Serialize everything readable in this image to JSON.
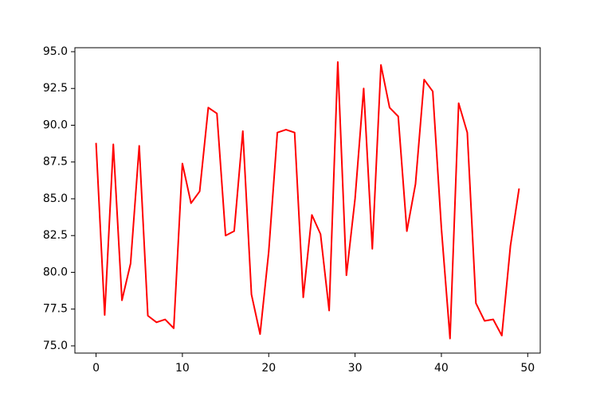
{
  "chart_data": {
    "type": "line",
    "x": [
      0,
      1,
      2,
      3,
      4,
      5,
      6,
      7,
      8,
      9,
      10,
      11,
      12,
      13,
      14,
      15,
      16,
      17,
      18,
      19,
      20,
      21,
      22,
      23,
      24,
      25,
      26,
      27,
      28,
      29,
      30,
      31,
      32,
      33,
      34,
      35,
      36,
      37,
      38,
      39,
      40,
      41,
      42,
      43,
      44,
      45,
      46,
      47,
      48,
      49
    ],
    "series": [
      {
        "color": "#ff0000",
        "values": [
          88.8,
          77.1,
          88.7,
          78.1,
          80.6,
          88.6,
          77.05,
          76.6,
          76.8,
          76.2,
          87.4,
          84.7,
          85.5,
          91.2,
          90.8,
          82.5,
          82.8,
          89.6,
          78.5,
          75.8,
          81.4,
          89.5,
          89.7,
          89.5,
          78.3,
          83.9,
          82.6,
          77.4,
          94.3,
          79.8,
          85.0,
          92.5,
          81.6,
          94.1,
          91.2,
          90.6,
          82.8,
          86.0,
          93.1,
          92.3,
          83.0,
          75.5,
          91.5,
          89.5,
          77.9,
          76.7,
          76.8,
          75.7,
          81.8,
          85.7
        ]
      }
    ],
    "xlim": [
      -2.45,
      51.45
    ],
    "xticks": [
      0,
      10,
      20,
      30,
      40,
      50
    ],
    "ylim": [
      74.51,
      95.27
    ],
    "yticks": [
      {
        "value": 75,
        "label": "75.0"
      },
      {
        "value": 77.5,
        "label": "77.5"
      },
      {
        "value": 80,
        "label": "80.0"
      },
      {
        "value": 82.5,
        "label": "82.5"
      },
      {
        "value": 85,
        "label": "85.0"
      },
      {
        "value": 87.5,
        "label": "87.5"
      },
      {
        "value": 90,
        "label": "90.0"
      },
      {
        "value": 92.5,
        "label": "92.5"
      },
      {
        "value": 95,
        "label": "95.0"
      }
    ]
  }
}
